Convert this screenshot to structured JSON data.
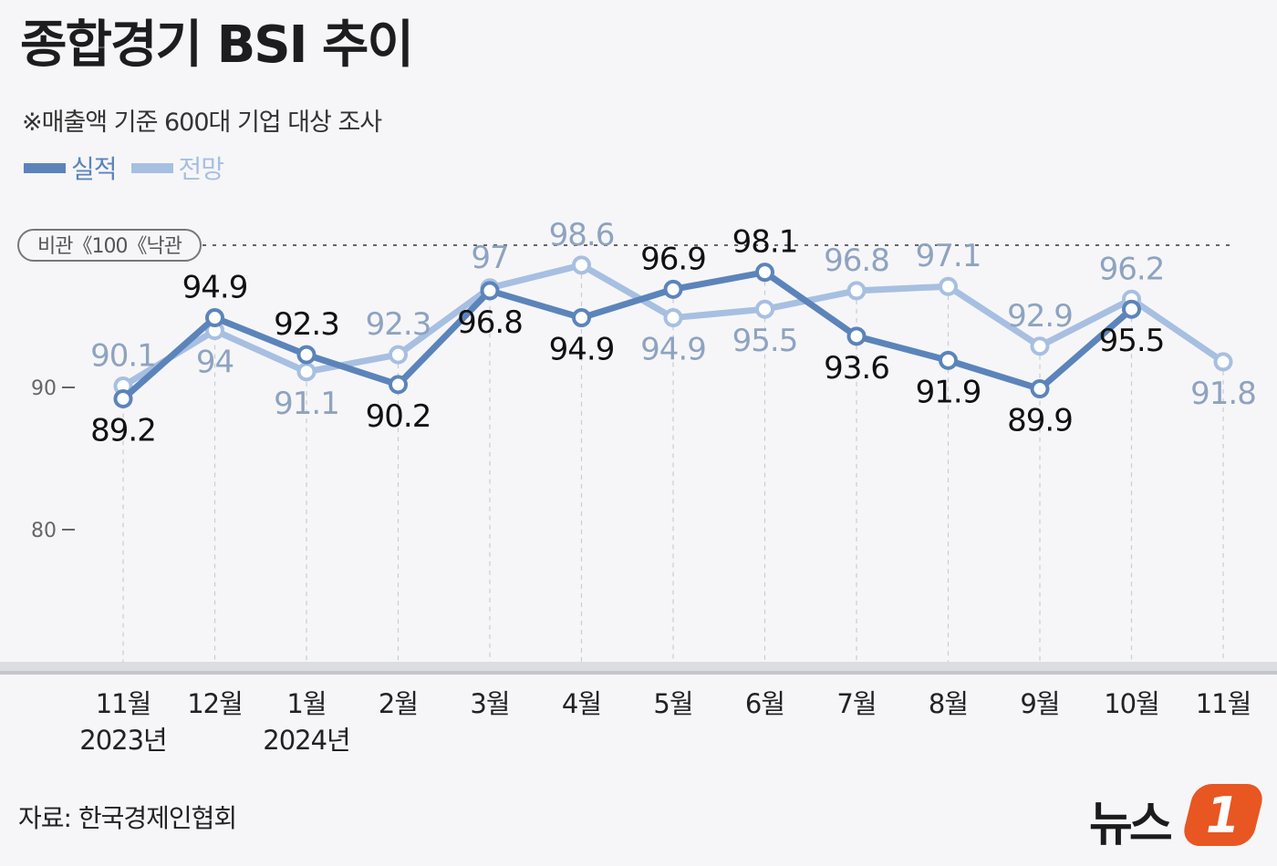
{
  "title": "종합경기 BSI 추이",
  "subtitle": "※매출액 기준 600대 기업 대상 조사",
  "source": "자료: 한국경제인협회",
  "logo": {
    "text": "뉴스",
    "badge": "1"
  },
  "colors": {
    "actual": "#5b84bb",
    "forecast": "#a7bfe1",
    "background": "#f6f6f8"
  },
  "chart_data": {
    "type": "line",
    "categories": [
      {
        "month": "11월",
        "year": "2023년"
      },
      {
        "month": "12월",
        "year": ""
      },
      {
        "month": "1월",
        "year": "2024년"
      },
      {
        "month": "2월",
        "year": ""
      },
      {
        "month": "3월",
        "year": ""
      },
      {
        "month": "4월",
        "year": ""
      },
      {
        "month": "5월",
        "year": ""
      },
      {
        "month": "6월",
        "year": ""
      },
      {
        "month": "7월",
        "year": ""
      },
      {
        "month": "8월",
        "year": ""
      },
      {
        "month": "9월",
        "year": ""
      },
      {
        "month": "10월",
        "year": ""
      },
      {
        "month": "11월",
        "year": ""
      }
    ],
    "series": [
      {
        "name": "실적",
        "color": "#5b84bb",
        "values": [
          89.2,
          94.9,
          92.3,
          90.2,
          96.8,
          94.9,
          96.9,
          98.1,
          93.6,
          91.9,
          89.9,
          95.5,
          null
        ]
      },
      {
        "name": "전망",
        "color": "#a7bfe1",
        "values": [
          90.1,
          94,
          91.1,
          92.3,
          97,
          98.6,
          94.9,
          95.5,
          96.8,
          97.1,
          92.9,
          96.2,
          91.8
        ]
      }
    ],
    "yticks": [
      80,
      90
    ],
    "ylim": [
      70,
      100
    ],
    "reference_line": {
      "value": 100,
      "label": "비관《100《낙관"
    },
    "grid": "vertical-dashed",
    "legend_position": "top-left"
  }
}
